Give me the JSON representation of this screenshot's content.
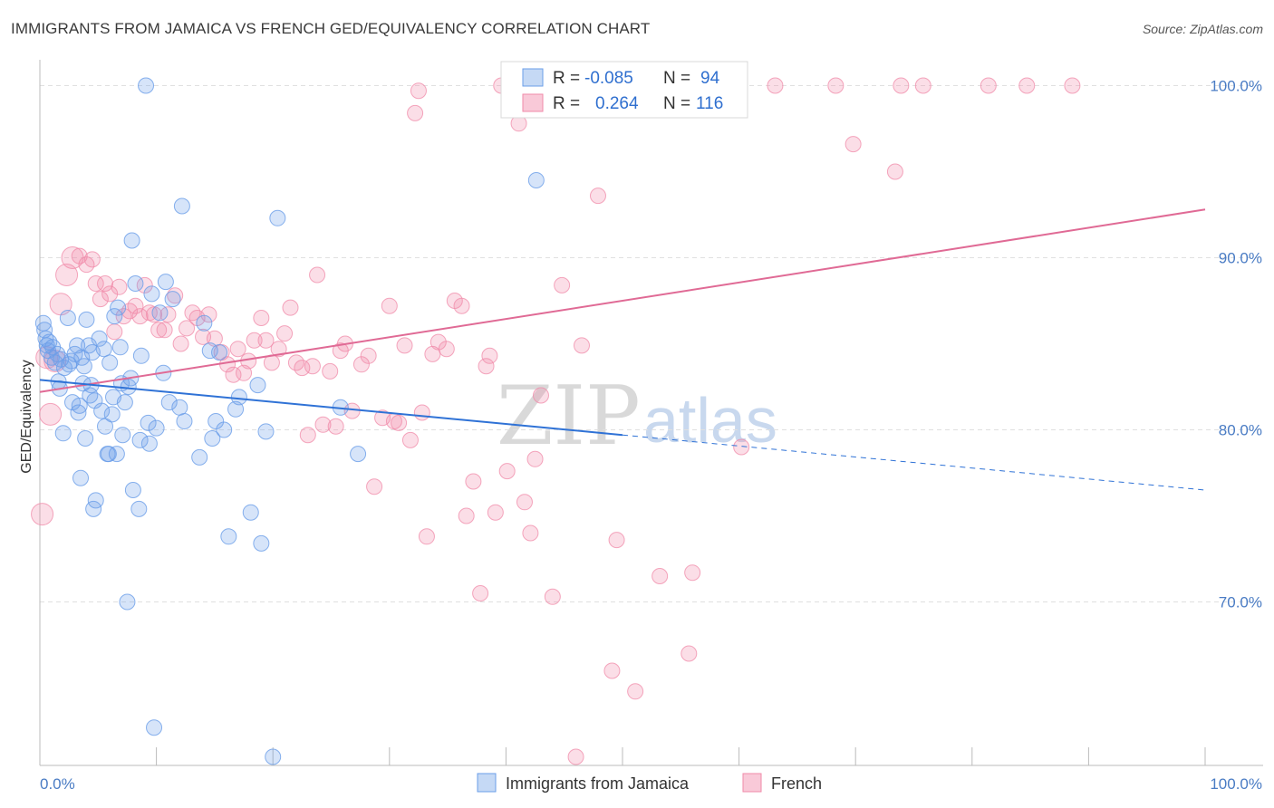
{
  "title": "IMMIGRANTS FROM JAMAICA VS FRENCH GED/EQUIVALENCY CORRELATION CHART",
  "source": "Source: ZipAtlas.com",
  "watermark": {
    "zip": "ZIP",
    "atlas": "atlas"
  },
  "colors": {
    "jamaica": "#6a9ee8",
    "french": "#f08aa8",
    "jamaica_line": "#2f72d6",
    "french_line": "#e06a95",
    "tick": "#4a7cc4",
    "grid": "#e0e0e0"
  },
  "legend": {
    "rows": [
      {
        "r_label": "R =",
        "r_value": "-0.085",
        "n_label": "N =",
        "n_value": "94"
      },
      {
        "r_label": "R =",
        "r_value": "0.264",
        "n_label": "N =",
        "n_value": "116"
      }
    ]
  },
  "bottom_legend": {
    "jamaica": "Immigrants from Jamaica",
    "french": "French"
  },
  "chart_data": {
    "type": "scatter",
    "title": "IMMIGRANTS FROM JAMAICA VS FRENCH GED/EQUIVALENCY CORRELATION CHART",
    "xlabel": "",
    "ylabel": "GED/Equivalency",
    "xlim": [
      0,
      100
    ],
    "ylim": [
      60.5,
      101.5
    ],
    "x_tick_labels": [
      "0.0%",
      "100.0%"
    ],
    "y_tick_labels": [
      "70.0%",
      "80.0%",
      "90.0%",
      "100.0%"
    ],
    "y_ticks": [
      70,
      80,
      90,
      100
    ],
    "grid": true,
    "legend_position": "top-center",
    "series": [
      {
        "name": "Immigrants from Jamaica",
        "r": -0.085,
        "n": 94,
        "trend": {
          "x": [
            0,
            100
          ],
          "y": [
            82.9,
            76.5
          ],
          "solid_until_x": 50
        },
        "points": [
          [
            0.3,
            86.2
          ],
          [
            0.4,
            85.8
          ],
          [
            0.5,
            85.3
          ],
          [
            0.6,
            84.9
          ],
          [
            0.7,
            84.6
          ],
          [
            0.8,
            85.1
          ],
          [
            1.0,
            84.2
          ],
          [
            1.1,
            84.8
          ],
          [
            1.3,
            83.9
          ],
          [
            1.5,
            84.4
          ],
          [
            1.6,
            82.8
          ],
          [
            1.7,
            82.4
          ],
          [
            1.8,
            84.1
          ],
          [
            2.0,
            79.8
          ],
          [
            2.1,
            83.6
          ],
          [
            2.4,
            86.5
          ],
          [
            2.7,
            84.0
          ],
          [
            2.8,
            81.6
          ],
          [
            3.0,
            84.4
          ],
          [
            3.2,
            84.9
          ],
          [
            3.3,
            81.0
          ],
          [
            3.4,
            81.4
          ],
          [
            3.5,
            77.2
          ],
          [
            3.7,
            82.7
          ],
          [
            3.8,
            83.7
          ],
          [
            3.9,
            79.5
          ],
          [
            4.0,
            86.4
          ],
          [
            4.2,
            84.9
          ],
          [
            4.3,
            82.0
          ],
          [
            4.5,
            84.5
          ],
          [
            4.6,
            75.4
          ],
          [
            4.7,
            81.7
          ],
          [
            4.8,
            75.9
          ],
          [
            5.1,
            85.3
          ],
          [
            5.3,
            81.1
          ],
          [
            5.5,
            84.7
          ],
          [
            5.6,
            80.2
          ],
          [
            5.8,
            78.6
          ],
          [
            6.0,
            83.9
          ],
          [
            6.2,
            80.9
          ],
          [
            6.3,
            81.9
          ],
          [
            6.4,
            86.6
          ],
          [
            6.6,
            78.6
          ],
          [
            6.7,
            87.1
          ],
          [
            6.9,
            84.8
          ],
          [
            7.0,
            82.7
          ],
          [
            7.1,
            79.7
          ],
          [
            7.3,
            81.6
          ],
          [
            7.5,
            70.0
          ],
          [
            7.6,
            82.5
          ],
          [
            7.8,
            83.0
          ],
          [
            7.9,
            91.0
          ],
          [
            8.0,
            76.5
          ],
          [
            8.2,
            88.5
          ],
          [
            8.5,
            75.4
          ],
          [
            8.6,
            79.4
          ],
          [
            8.7,
            84.3
          ],
          [
            9.1,
            100.0
          ],
          [
            9.3,
            80.4
          ],
          [
            9.6,
            87.9
          ],
          [
            9.8,
            62.7
          ],
          [
            10.0,
            80.1
          ],
          [
            10.3,
            86.8
          ],
          [
            10.6,
            83.3
          ],
          [
            10.8,
            88.6
          ],
          [
            11.1,
            81.6
          ],
          [
            11.4,
            87.6
          ],
          [
            12.0,
            81.3
          ],
          [
            12.2,
            93.0
          ],
          [
            12.4,
            80.5
          ],
          [
            13.7,
            78.4
          ],
          [
            14.1,
            86.2
          ],
          [
            14.6,
            84.6
          ],
          [
            14.8,
            79.5
          ],
          [
            15.1,
            80.5
          ],
          [
            15.4,
            84.5
          ],
          [
            15.8,
            80.0
          ],
          [
            16.2,
            73.8
          ],
          [
            16.8,
            81.2
          ],
          [
            17.1,
            81.9
          ],
          [
            18.1,
            75.2
          ],
          [
            18.7,
            82.6
          ],
          [
            19.0,
            73.4
          ],
          [
            19.4,
            79.9
          ],
          [
            20.0,
            61.0
          ],
          [
            20.4,
            92.3
          ],
          [
            25.8,
            81.3
          ],
          [
            27.3,
            78.6
          ],
          [
            42.6,
            94.5
          ],
          [
            4.4,
            82.6
          ],
          [
            2.5,
            83.8
          ],
          [
            5.9,
            78.6
          ],
          [
            9.4,
            79.2
          ],
          [
            3.6,
            84.2
          ]
        ]
      },
      {
        "name": "French",
        "r": 0.264,
        "n": 116,
        "trend": {
          "x": [
            0,
            100
          ],
          "y": [
            82.2,
            92.8
          ]
        },
        "points": [
          [
            0.2,
            75.1
          ],
          [
            0.6,
            84.2
          ],
          [
            0.9,
            80.9
          ],
          [
            1.3,
            84.0
          ],
          [
            1.8,
            87.3
          ],
          [
            2.3,
            89.0
          ],
          [
            2.8,
            90.0
          ],
          [
            3.4,
            90.1
          ],
          [
            4.0,
            89.6
          ],
          [
            4.5,
            89.9
          ],
          [
            4.8,
            88.5
          ],
          [
            5.2,
            87.6
          ],
          [
            5.6,
            88.5
          ],
          [
            6.0,
            87.9
          ],
          [
            6.4,
            85.7
          ],
          [
            6.8,
            88.3
          ],
          [
            7.2,
            86.6
          ],
          [
            7.7,
            86.9
          ],
          [
            8.2,
            87.2
          ],
          [
            8.6,
            86.6
          ],
          [
            9.0,
            88.4
          ],
          [
            9.4,
            86.8
          ],
          [
            9.8,
            86.7
          ],
          [
            10.2,
            85.8
          ],
          [
            10.7,
            85.8
          ],
          [
            11.0,
            86.7
          ],
          [
            11.6,
            87.8
          ],
          [
            12.1,
            85.0
          ],
          [
            12.6,
            85.9
          ],
          [
            13.1,
            86.8
          ],
          [
            13.5,
            86.5
          ],
          [
            14.0,
            85.4
          ],
          [
            14.5,
            86.7
          ],
          [
            15.0,
            85.3
          ],
          [
            15.6,
            84.5
          ],
          [
            16.1,
            83.8
          ],
          [
            16.6,
            83.2
          ],
          [
            17.0,
            84.7
          ],
          [
            17.5,
            83.3
          ],
          [
            17.9,
            84.0
          ],
          [
            18.4,
            85.2
          ],
          [
            19.0,
            86.5
          ],
          [
            19.4,
            85.2
          ],
          [
            19.9,
            83.9
          ],
          [
            20.5,
            84.7
          ],
          [
            21.0,
            85.6
          ],
          [
            21.5,
            87.1
          ],
          [
            22.0,
            83.9
          ],
          [
            22.5,
            83.6
          ],
          [
            23.0,
            79.7
          ],
          [
            23.4,
            83.7
          ],
          [
            23.8,
            89.0
          ],
          [
            24.3,
            80.3
          ],
          [
            24.9,
            83.4
          ],
          [
            25.4,
            80.2
          ],
          [
            25.8,
            84.6
          ],
          [
            26.2,
            85.0
          ],
          [
            26.8,
            81.1
          ],
          [
            27.6,
            83.8
          ],
          [
            28.2,
            84.3
          ],
          [
            28.7,
            76.7
          ],
          [
            29.4,
            80.7
          ],
          [
            30.0,
            87.2
          ],
          [
            30.4,
            80.5
          ],
          [
            30.8,
            80.4
          ],
          [
            31.3,
            84.9
          ],
          [
            31.8,
            79.4
          ],
          [
            32.2,
            98.4
          ],
          [
            32.5,
            99.7
          ],
          [
            32.8,
            81.0
          ],
          [
            33.2,
            73.8
          ],
          [
            33.7,
            84.4
          ],
          [
            34.2,
            85.1
          ],
          [
            34.9,
            84.7
          ],
          [
            35.6,
            87.5
          ],
          [
            36.2,
            87.2
          ],
          [
            36.6,
            75.0
          ],
          [
            37.2,
            77.0
          ],
          [
            37.8,
            70.5
          ],
          [
            38.3,
            83.7
          ],
          [
            38.6,
            84.3
          ],
          [
            39.1,
            75.2
          ],
          [
            39.6,
            100.0
          ],
          [
            40.1,
            77.6
          ],
          [
            40.5,
            99.5
          ],
          [
            41.1,
            97.8
          ],
          [
            41.6,
            75.8
          ],
          [
            42.1,
            74.0
          ],
          [
            42.5,
            78.3
          ],
          [
            43.0,
            82.0
          ],
          [
            43.6,
            100.0
          ],
          [
            44.0,
            70.3
          ],
          [
            44.8,
            88.4
          ],
          [
            46.0,
            61.0
          ],
          [
            46.5,
            84.9
          ],
          [
            47.2,
            100.0
          ],
          [
            47.9,
            93.6
          ],
          [
            49.1,
            66.0
          ],
          [
            49.5,
            73.6
          ],
          [
            50.0,
            100.0
          ],
          [
            51.1,
            64.8
          ],
          [
            52.0,
            100.0
          ],
          [
            53.2,
            71.5
          ],
          [
            55.7,
            67.0
          ],
          [
            56.0,
            71.7
          ],
          [
            57.0,
            100.0
          ],
          [
            60.2,
            79.0
          ],
          [
            63.1,
            100.0
          ],
          [
            68.3,
            100.0
          ],
          [
            69.8,
            96.6
          ],
          [
            73.4,
            95.0
          ],
          [
            73.9,
            100.0
          ],
          [
            75.8,
            100.0
          ],
          [
            81.4,
            100.0
          ],
          [
            84.7,
            100.0
          ],
          [
            88.6,
            100.0
          ]
        ]
      }
    ]
  }
}
